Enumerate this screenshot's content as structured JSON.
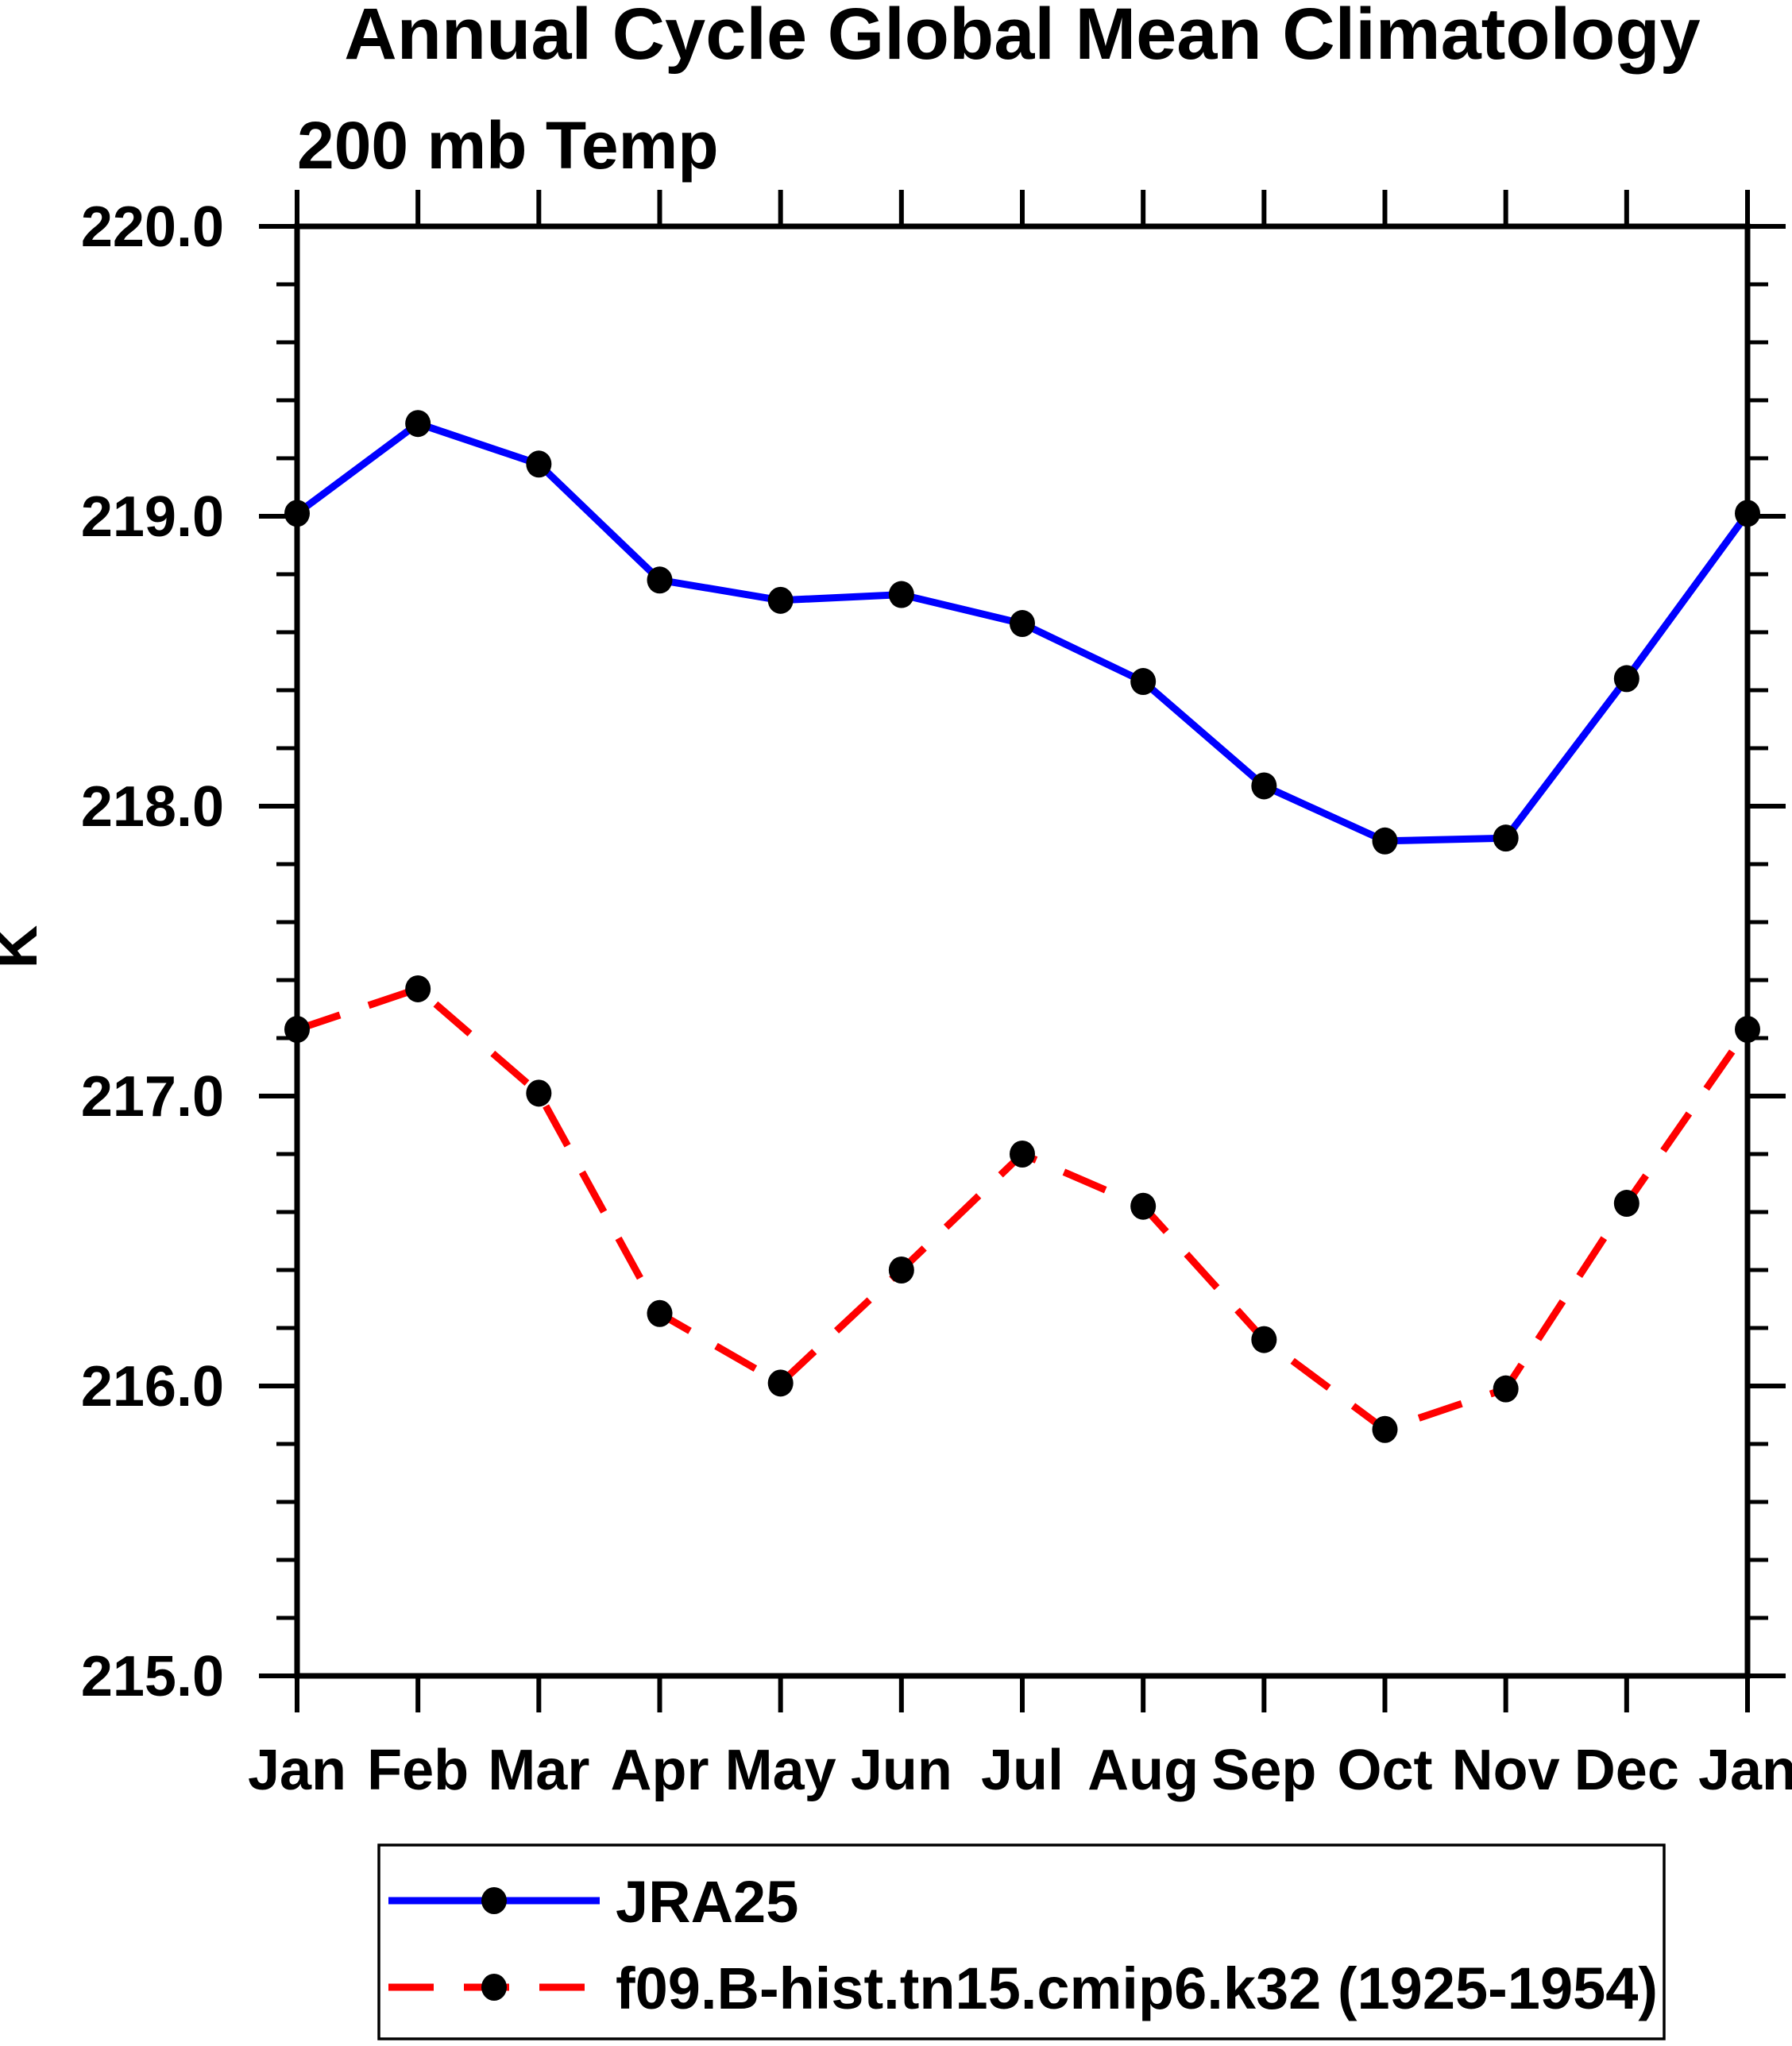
{
  "chart_data": {
    "type": "line",
    "title": "Annual Cycle Global Mean Climatology",
    "subtitle": "200 mb Temp",
    "ylabel": "K",
    "categories": [
      "Jan",
      "Feb",
      "Mar",
      "Apr",
      "May",
      "Jun",
      "Jul",
      "Aug",
      "Sep",
      "Oct",
      "Nov",
      "Dec",
      "Jan"
    ],
    "ylim": [
      215.0,
      220.0
    ],
    "ytick_values": [
      215,
      216,
      217,
      218,
      219,
      220
    ],
    "ytick_labels": [
      "215.0",
      "216.0",
      "217.0",
      "218.0",
      "219.0",
      "220.0"
    ],
    "minor_tick_step": 0.2,
    "grid": false,
    "legend_position": "bottom",
    "axis_color": "#000000",
    "marker_shape": "filled-circle",
    "marker_color": "#000000",
    "series": [
      {
        "name": "JRA25",
        "color": "#0000ff",
        "style": "solid",
        "values": [
          219.01,
          219.32,
          219.18,
          218.78,
          218.71,
          218.73,
          218.63,
          218.43,
          218.07,
          217.88,
          217.89,
          218.44,
          219.01
        ]
      },
      {
        "name": "f09.B-hist.tn15.cmip6.k32 (1925-1954)",
        "color": "#ff0000",
        "style": "dashed",
        "values": [
          217.23,
          217.37,
          217.01,
          216.25,
          216.01,
          216.4,
          216.8,
          216.62,
          216.16,
          215.85,
          215.99,
          216.63,
          217.23
        ]
      }
    ]
  }
}
